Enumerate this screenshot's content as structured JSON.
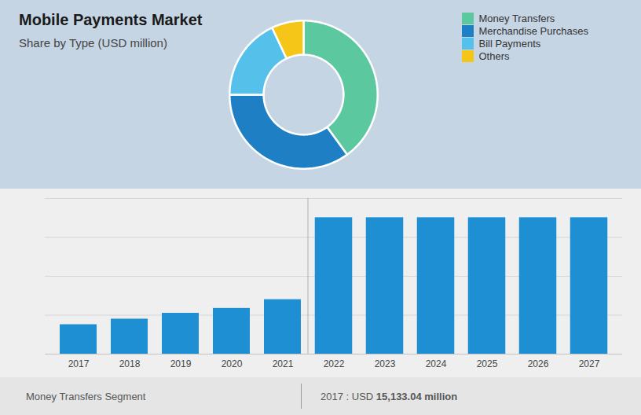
{
  "chart_data": [
    {
      "type": "pie",
      "title": "Mobile Payments Market",
      "subtitle": "Share by Type (USD million)",
      "categories": [
        "Money Transfers",
        "Merchandise Purchases",
        "Bill Payments",
        "Others"
      ],
      "values": [
        40,
        35,
        18,
        7
      ],
      "colors": [
        "#5bc8a0",
        "#1f7fc4",
        "#55c0ea",
        "#f5c518"
      ],
      "legend": "right"
    },
    {
      "type": "bar",
      "categories": [
        "2017",
        "2018",
        "2019",
        "2020",
        "2021",
        "2022",
        "2023",
        "2024",
        "2025",
        "2026",
        "2027"
      ],
      "values": [
        15133,
        18000,
        21000,
        23500,
        28000,
        70000,
        70000,
        70000,
        70000,
        70000,
        70000
      ],
      "color": "#1f8fd4",
      "colors": [
        "#1f8fd4",
        "#1f8fd4",
        "#1f8fd4",
        "#1f8fd4",
        "#1f8fd4",
        "#e8f4fc",
        "#e8f4fc",
        "#e8f4fc",
        "#e8f4fc",
        "#e8f4fc",
        "#e8f4fc"
      ],
      "ylim": [
        0,
        80000
      ],
      "yticks": [
        0,
        20000,
        40000,
        60000,
        80000
      ],
      "grid": true,
      "tick_labels": "x",
      "annotations": [
        "Money Transfers Segment",
        "2017 : USD ",
        "15,133.04 million"
      ]
    }
  ]
}
